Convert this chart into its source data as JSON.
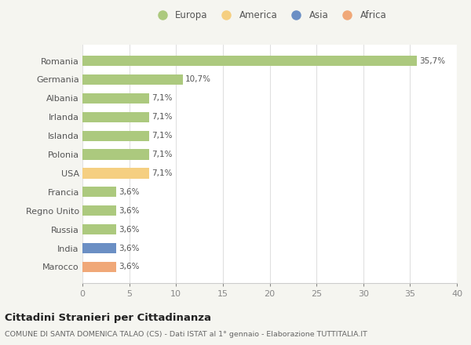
{
  "categories": [
    "Romania",
    "Germania",
    "Albania",
    "Irlanda",
    "Islanda",
    "Polonia",
    "USA",
    "Francia",
    "Regno Unito",
    "Russia",
    "India",
    "Marocco"
  ],
  "values": [
    35.7,
    10.7,
    7.1,
    7.1,
    7.1,
    7.1,
    7.1,
    3.6,
    3.6,
    3.6,
    3.6,
    3.6
  ],
  "labels": [
    "35,7%",
    "10,7%",
    "7,1%",
    "7,1%",
    "7,1%",
    "7,1%",
    "7,1%",
    "3,6%",
    "3,6%",
    "3,6%",
    "3,6%",
    "3,6%"
  ],
  "colors": [
    "#acc97e",
    "#acc97e",
    "#acc97e",
    "#acc97e",
    "#acc97e",
    "#acc97e",
    "#f5cf81",
    "#acc97e",
    "#acc97e",
    "#acc97e",
    "#6b8fc4",
    "#f0a878"
  ],
  "legend_labels": [
    "Europa",
    "America",
    "Asia",
    "Africa"
  ],
  "legend_colors": [
    "#acc97e",
    "#f5cf81",
    "#6b8fc4",
    "#f0a878"
  ],
  "title": "Cittadini Stranieri per Cittadinanza",
  "subtitle": "COMUNE DI SANTA DOMENICA TALAO (CS) - Dati ISTAT al 1° gennaio - Elaborazione TUTTITALIA.IT",
  "xlim": [
    0,
    40
  ],
  "xticks": [
    0,
    5,
    10,
    15,
    20,
    25,
    30,
    35,
    40
  ],
  "bg_color": "#f5f5f0",
  "plot_bg_color": "#ffffff",
  "grid_color": "#e0e0e0"
}
